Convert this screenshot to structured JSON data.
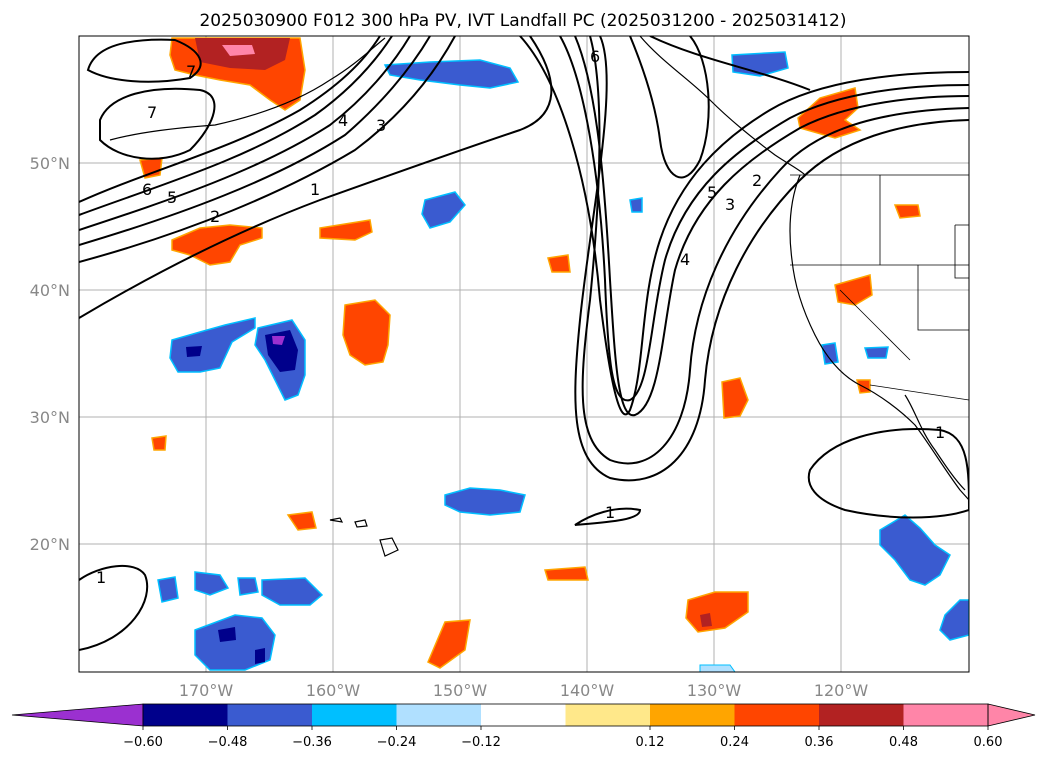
{
  "title": "2025030900 F012 300 hPa PV, IVT Landfall PC (2025031200 - 2025031412)",
  "lat_labels": [
    "50°N",
    "40°N",
    "30°N",
    "20°N"
  ],
  "lon_labels": [
    "170°W",
    "160°W",
    "150°W",
    "140°W",
    "130°W",
    "120°W"
  ],
  "colorbar": {
    "ticks": [
      "−0.60",
      "−0.48",
      "−0.36",
      "−0.24",
      "−0.12",
      "0.12",
      "0.24",
      "0.36",
      "0.48",
      "0.60"
    ],
    "colors": [
      "#9b30d0",
      "#00008b",
      "#3a5bd0",
      "#00bfff",
      "#b0e0ff",
      "#ffffff",
      "#ffe88a",
      "#ffa500",
      "#ff4500",
      "#b22222",
      "#ff85a8",
      "#ff85a8"
    ],
    "extend": "both"
  },
  "contour_labels": [
    "7",
    "7",
    "6",
    "5",
    "4",
    "3",
    "2",
    "1",
    "6",
    "5",
    "4",
    "3",
    "2",
    "1",
    "1",
    "1"
  ],
  "legend_placement": "bottom"
}
